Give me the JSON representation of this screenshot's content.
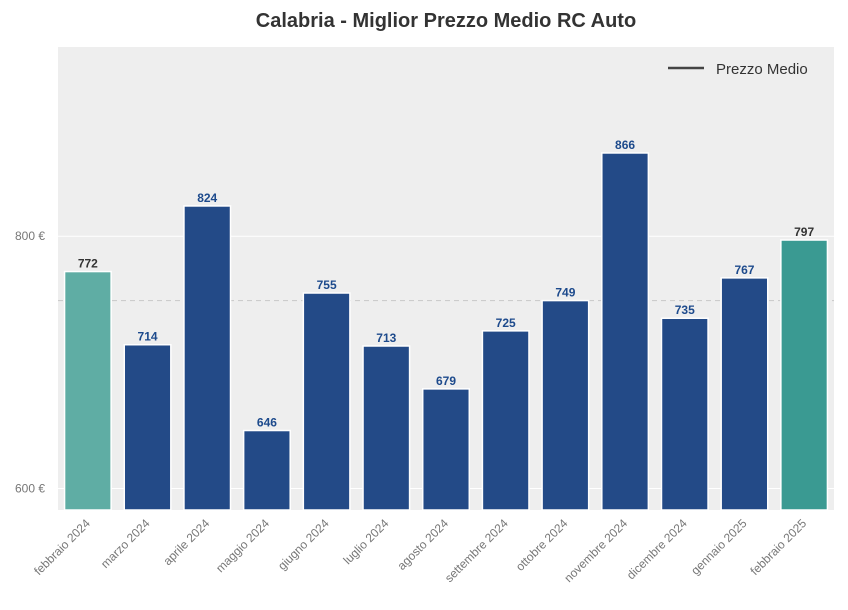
{
  "chart_data": {
    "type": "bar",
    "title": "Calabria - Miglior Prezzo Medio RC Auto",
    "xlabel": "",
    "ylabel": "",
    "categories": [
      "febbraio 2024",
      "marzo 2024",
      "aprile 2024",
      "maggio 2024",
      "giugno 2024",
      "luglio 2024",
      "agosto 2024",
      "settembre 2024",
      "ottobre 2024",
      "novembre 2024",
      "dicembre 2024",
      "gennaio 2025",
      "febbraio 2025"
    ],
    "values": [
      772,
      714,
      824,
      646,
      755,
      713,
      679,
      725,
      749,
      866,
      735,
      767,
      797
    ],
    "value_labels": [
      "772",
      "714",
      "824",
      "646",
      "755",
      "713",
      "679",
      "725",
      "749",
      "866",
      "735",
      "767",
      "797"
    ],
    "bar_colors": [
      "#5fada4",
      "#234a87",
      "#234a87",
      "#234a87",
      "#234a87",
      "#234a87",
      "#234a87",
      "#234a87",
      "#234a87",
      "#234a87",
      "#234a87",
      "#234a87",
      "#3a9a92"
    ],
    "label_colors": [
      "#333333",
      "#1d4a8c",
      "#1d4a8c",
      "#1d4a8c",
      "#1d4a8c",
      "#1d4a8c",
      "#1d4a8c",
      "#1d4a8c",
      "#1d4a8c",
      "#1d4a8c",
      "#1d4a8c",
      "#1d4a8c",
      "#333333"
    ],
    "ylim": [
      583,
      950
    ],
    "yticks": [
      600,
      800
    ],
    "ytick_labels": [
      "600 €",
      "800 €"
    ],
    "mean_line": 749,
    "legend": {
      "label": "Prezzo Medio",
      "position": "top-right"
    },
    "grid": true,
    "colors": {
      "plot_bg": "#eeeeee",
      "grid": "#ffffff",
      "mean_line": "#cccccc",
      "legend_line": "#444444"
    }
  }
}
